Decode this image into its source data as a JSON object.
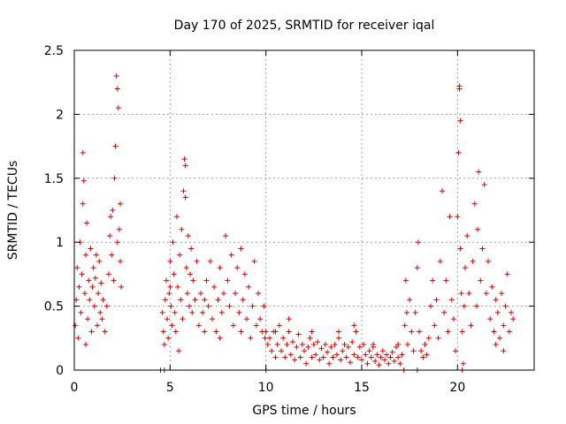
{
  "chart_data": {
    "type": "scatter",
    "title": "Day 170 of 2025, SRMTID for receiver iqal",
    "xlabel": "GPS time / hours",
    "ylabel": "SRMTID / TECUs",
    "xlim": [
      0,
      24
    ],
    "ylim": [
      0,
      2.5
    ],
    "xticks": [
      0,
      5,
      10,
      15,
      20
    ],
    "xtick_labels": [
      "0",
      "5",
      "10",
      "15",
      "20"
    ],
    "yticks": [
      0,
      0.5,
      1,
      1.5,
      2,
      2.5
    ],
    "ytick_labels": [
      "0",
      "0.5",
      "1",
      "1.5",
      "2",
      "2.5"
    ],
    "grid": true,
    "marker": "+",
    "color": "#dd0000",
    "series": [
      {
        "name": "SRMTID",
        "points": [
          [
            0.05,
            0.35
          ],
          [
            0.1,
            0.55
          ],
          [
            0.15,
            0.8
          ],
          [
            0.2,
            0.25
          ],
          [
            0.25,
            0.65
          ],
          [
            0.3,
            1.0
          ],
          [
            0.35,
            0.45
          ],
          [
            0.4,
            0.75
          ],
          [
            0.45,
            1.3
          ],
          [
            0.5,
            1.48
          ],
          [
            0.55,
            0.6
          ],
          [
            0.6,
            0.9
          ],
          [
            0.65,
            1.15
          ],
          [
            0.7,
            0.4
          ],
          [
            0.75,
            0.7
          ],
          [
            0.8,
            0.55
          ],
          [
            0.85,
            0.95
          ],
          [
            0.9,
            0.3
          ],
          [
            0.95,
            0.65
          ],
          [
            1.0,
            0.8
          ],
          [
            1.05,
            0.5
          ],
          [
            1.1,
            0.72
          ],
          [
            1.15,
            0.9
          ],
          [
            1.2,
            0.35
          ],
          [
            1.25,
            0.6
          ],
          [
            1.3,
            0.85
          ],
          [
            1.35,
            0.45
          ],
          [
            1.4,
            0.68
          ],
          [
            1.5,
            0.55
          ],
          [
            1.6,
            0.3
          ],
          [
            1.7,
            0.5
          ],
          [
            1.8,
            0.75
          ],
          [
            1.85,
            1.05
          ],
          [
            1.9,
            1.2
          ],
          [
            1.95,
            0.9
          ],
          [
            2.0,
            1.25
          ],
          [
            2.05,
            0.7
          ],
          [
            2.1,
            1.5
          ],
          [
            2.15,
            1.75
          ],
          [
            2.2,
            2.3
          ],
          [
            2.25,
            2.2
          ],
          [
            2.3,
            2.05
          ],
          [
            2.35,
            1.1
          ],
          [
            2.4,
            0.85
          ],
          [
            2.45,
            0.65
          ],
          [
            0.45,
            1.7
          ],
          [
            0.6,
            0.2
          ],
          [
            1.45,
            0.4
          ],
          [
            2.25,
            1.0
          ],
          [
            2.4,
            1.3
          ],
          [
            4.5,
            0.0
          ],
          [
            4.7,
            0.0
          ],
          [
            4.6,
            0.45
          ],
          [
            4.65,
            0.3
          ],
          [
            4.7,
            0.2
          ],
          [
            4.75,
            0.55
          ],
          [
            4.8,
            0.7
          ],
          [
            4.85,
            0.4
          ],
          [
            4.9,
            0.25
          ],
          [
            4.95,
            0.6
          ],
          [
            5.0,
            0.85
          ],
          [
            5.05,
            0.5
          ],
          [
            5.1,
            0.35
          ],
          [
            5.15,
            1.0
          ],
          [
            5.2,
            0.75
          ],
          [
            5.25,
            0.45
          ],
          [
            5.3,
            0.3
          ],
          [
            5.35,
            1.2
          ],
          [
            5.4,
            0.65
          ],
          [
            5.45,
            0.15
          ],
          [
            5.5,
            0.9
          ],
          [
            5.55,
            0.55
          ],
          [
            5.6,
            1.1
          ],
          [
            5.65,
            0.4
          ],
          [
            5.7,
            1.4
          ],
          [
            5.75,
            1.65
          ],
          [
            5.8,
            1.35
          ],
          [
            5.85,
            0.8
          ],
          [
            5.9,
            0.6
          ],
          [
            5.95,
            1.05
          ],
          [
            6.0,
            0.5
          ],
          [
            6.05,
            0.75
          ],
          [
            6.1,
            0.95
          ],
          [
            6.15,
            0.45
          ],
          [
            6.2,
            0.7
          ],
          [
            6.3,
            0.55
          ],
          [
            6.4,
            0.85
          ],
          [
            6.5,
            0.35
          ],
          [
            6.6,
            0.6
          ],
          [
            6.7,
            0.45
          ],
          [
            6.8,
            0.3
          ],
          [
            6.9,
            0.7
          ],
          [
            7.0,
            0.5
          ],
          [
            7.1,
            0.85
          ],
          [
            7.2,
            0.4
          ],
          [
            7.3,
            0.65
          ],
          [
            7.4,
            0.3
          ],
          [
            7.5,
            0.55
          ],
          [
            7.6,
            0.8
          ],
          [
            7.7,
            0.45
          ],
          [
            7.8,
            0.6
          ],
          [
            7.9,
            1.05
          ],
          [
            8.0,
            0.7
          ],
          [
            8.1,
            0.5
          ],
          [
            8.2,
            0.9
          ],
          [
            8.3,
            0.35
          ],
          [
            8.4,
            0.6
          ],
          [
            8.5,
            0.8
          ],
          [
            8.6,
            0.45
          ],
          [
            8.7,
            0.3
          ],
          [
            8.8,
            0.55
          ],
          [
            8.9,
            0.75
          ],
          [
            9.0,
            0.4
          ],
          [
            9.1,
            0.65
          ],
          [
            9.2,
            0.25
          ],
          [
            9.3,
            0.5
          ],
          [
            9.4,
            0.85
          ],
          [
            9.5,
            0.35
          ],
          [
            9.6,
            0.6
          ],
          [
            9.7,
            0.4
          ],
          [
            9.8,
            0.3
          ],
          [
            9.9,
            0.5
          ],
          [
            9.95,
            0.25
          ],
          [
            5.0,
            0.65
          ],
          [
            5.8,
            1.6
          ],
          [
            6.8,
            0.55
          ],
          [
            7.6,
            0.25
          ],
          [
            8.7,
            0.95
          ],
          [
            10.0,
            0.0
          ],
          [
            10.0,
            0.3
          ],
          [
            10.1,
            0.2
          ],
          [
            10.2,
            0.25
          ],
          [
            10.3,
            0.15
          ],
          [
            10.4,
            0.3
          ],
          [
            10.5,
            0.1
          ],
          [
            10.6,
            0.2
          ],
          [
            10.7,
            0.35
          ],
          [
            10.8,
            0.15
          ],
          [
            10.9,
            0.25
          ],
          [
            11.0,
            0.1
          ],
          [
            11.1,
            0.2
          ],
          [
            11.2,
            0.3
          ],
          [
            11.3,
            0.12
          ],
          [
            11.4,
            0.22
          ],
          [
            11.5,
            0.08
          ],
          [
            11.6,
            0.18
          ],
          [
            11.7,
            0.28
          ],
          [
            11.8,
            0.1
          ],
          [
            11.9,
            0.2
          ],
          [
            12.0,
            0.15
          ],
          [
            12.1,
            0.05
          ],
          [
            12.2,
            0.18
          ],
          [
            12.3,
            0.25
          ],
          [
            12.4,
            0.1
          ],
          [
            12.5,
            0.2
          ],
          [
            12.6,
            0.12
          ],
          [
            12.7,
            0.22
          ],
          [
            12.8,
            0.08
          ],
          [
            12.9,
            0.17
          ],
          [
            13.0,
            0.1
          ],
          [
            13.1,
            0.2
          ],
          [
            13.2,
            0.14
          ],
          [
            13.3,
            0.05
          ],
          [
            13.4,
            0.18
          ],
          [
            13.5,
            0.1
          ],
          [
            13.6,
            0.2
          ],
          [
            13.7,
            0.12
          ],
          [
            13.8,
            0.25
          ],
          [
            13.9,
            0.08
          ],
          [
            14.0,
            0.15
          ],
          [
            14.1,
            0.2
          ],
          [
            14.2,
            0.1
          ],
          [
            14.3,
            0.18
          ],
          [
            14.4,
            0.06
          ],
          [
            14.5,
            0.22
          ],
          [
            14.6,
            0.12
          ],
          [
            14.7,
            0.3
          ],
          [
            14.8,
            0.1
          ],
          [
            14.9,
            0.18
          ],
          [
            15.0,
            0.08
          ],
          [
            15.1,
            0.2
          ],
          [
            15.2,
            0.12
          ],
          [
            15.3,
            0.05
          ],
          [
            15.4,
            0.15
          ],
          [
            15.5,
            0.1
          ],
          [
            15.6,
            0.18
          ],
          [
            15.7,
            0.07
          ],
          [
            15.8,
            0.12
          ],
          [
            15.9,
            0.04
          ],
          [
            16.0,
            0.1
          ],
          [
            16.1,
            0.15
          ],
          [
            16.2,
            0.08
          ],
          [
            16.3,
            0.12
          ],
          [
            16.4,
            0.05
          ],
          [
            16.5,
            0.1
          ],
          [
            16.6,
            0.14
          ],
          [
            16.7,
            0.07
          ],
          [
            16.8,
            0.18
          ],
          [
            16.9,
            0.1
          ],
          [
            17.0,
            0.05
          ],
          [
            17.1,
            0.12
          ],
          [
            10.5,
            0.3
          ],
          [
            11.2,
            0.4
          ],
          [
            12.4,
            0.3
          ],
          [
            13.8,
            0.3
          ],
          [
            14.6,
            0.35
          ],
          [
            15.6,
            0.2
          ],
          [
            16.9,
            0.2
          ],
          [
            17.2,
            0.0
          ],
          [
            17.9,
            0.0
          ],
          [
            17.25,
            0.35
          ],
          [
            17.3,
            0.7
          ],
          [
            17.35,
            0.45
          ],
          [
            17.4,
            0.2
          ],
          [
            17.5,
            0.55
          ],
          [
            17.6,
            0.3
          ],
          [
            17.7,
            0.15
          ],
          [
            17.8,
            0.45
          ],
          [
            17.9,
            0.8
          ],
          [
            17.95,
            1.0
          ],
          [
            18.0,
            0.3
          ],
          [
            18.1,
            0.15
          ],
          [
            18.2,
            0.1
          ],
          [
            18.3,
            0.2
          ],
          [
            18.4,
            0.12
          ],
          [
            18.5,
            0.25
          ],
          [
            18.6,
            0.5
          ],
          [
            18.7,
            0.7
          ],
          [
            18.8,
            0.35
          ],
          [
            18.9,
            0.55
          ],
          [
            19.0,
            0.25
          ],
          [
            19.1,
            0.85
          ],
          [
            19.2,
            1.4
          ],
          [
            19.3,
            0.45
          ],
          [
            19.4,
            0.7
          ],
          [
            19.5,
            0.3
          ],
          [
            19.6,
            1.2
          ],
          [
            19.7,
            0.55
          ],
          [
            19.8,
            0.4
          ],
          [
            19.9,
            0.15
          ],
          [
            20.0,
            1.2
          ],
          [
            20.05,
            1.7
          ],
          [
            20.1,
            2.2
          ],
          [
            20.15,
            1.95
          ],
          [
            20.2,
            0.6
          ],
          [
            20.25,
            0.3
          ],
          [
            20.3,
            0.05
          ],
          [
            20.35,
            0.5
          ],
          [
            20.4,
            0.8
          ],
          [
            20.5,
            1.05
          ],
          [
            20.6,
            0.6
          ],
          [
            20.7,
            0.35
          ],
          [
            20.8,
            0.85
          ],
          [
            20.9,
            1.3
          ],
          [
            21.0,
            0.5
          ],
          [
            21.1,
            1.55
          ],
          [
            21.2,
            0.7
          ],
          [
            21.3,
            0.95
          ],
          [
            21.4,
            1.45
          ],
          [
            21.5,
            0.6
          ],
          [
            21.6,
            0.85
          ],
          [
            21.7,
            0.4
          ],
          [
            21.8,
            0.65
          ],
          [
            21.9,
            0.3
          ],
          [
            22.0,
            0.55
          ],
          [
            22.1,
            0.45
          ],
          [
            22.2,
            0.25
          ],
          [
            22.3,
            0.6
          ],
          [
            22.4,
            0.35
          ],
          [
            22.5,
            0.5
          ],
          [
            22.6,
            0.75
          ],
          [
            22.7,
            0.3
          ],
          [
            22.8,
            0.45
          ],
          [
            22.9,
            0.4
          ],
          [
            20.1,
            2.22
          ],
          [
            20.15,
            0.95
          ],
          [
            20.25,
            0.0
          ],
          [
            21.05,
            1.1
          ],
          [
            22.0,
            0.2
          ],
          [
            22.4,
            0.15
          ]
        ]
      }
    ]
  }
}
